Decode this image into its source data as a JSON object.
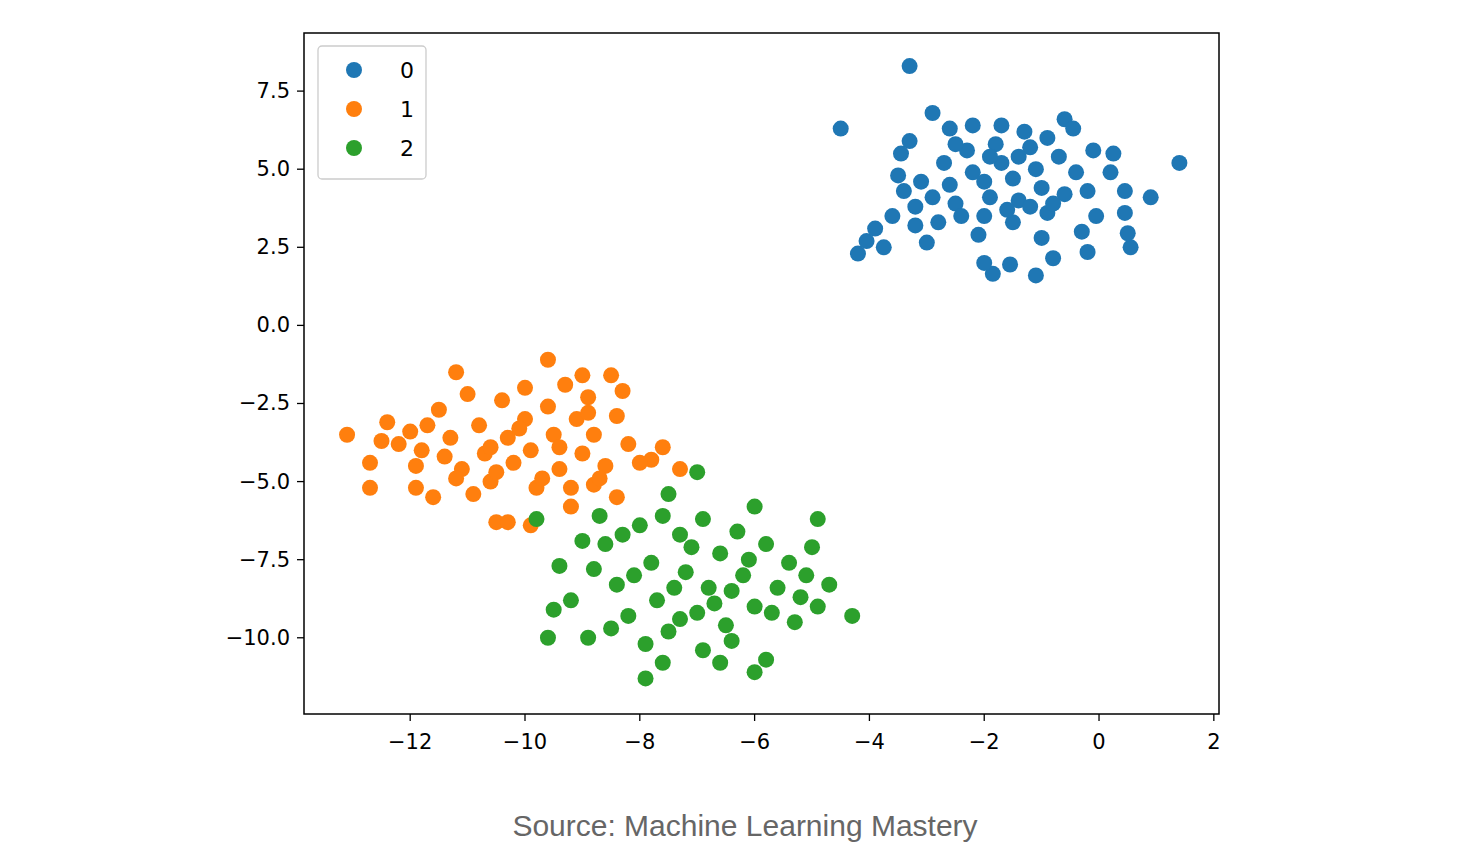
{
  "chart_data": {
    "type": "scatter",
    "source": "Source: Machine Learning Mastery",
    "legend": "upper left",
    "grid": false,
    "xlim": [
      -13.85,
      2.09
    ],
    "ylim": [
      -12.44,
      9.36
    ],
    "xticks": [
      {
        "value": -12,
        "label": "−12"
      },
      {
        "value": -10,
        "label": "−10"
      },
      {
        "value": -8,
        "label": "−8"
      },
      {
        "value": -6,
        "label": "−6"
      },
      {
        "value": -4,
        "label": "−4"
      },
      {
        "value": -2,
        "label": "−2"
      },
      0,
      2
    ],
    "yticks": [
      {
        "value": -10,
        "label": "−10.0"
      },
      {
        "value": -7.5,
        "label": "−7.5"
      },
      {
        "value": -5,
        "label": "−5.0"
      },
      {
        "value": -2.5,
        "label": "−2.5"
      },
      {
        "value": 0,
        "label": "0.0"
      },
      2.5,
      {
        "value": 5,
        "label": "5.0"
      },
      7.5
    ],
    "series": [
      {
        "name": "0",
        "color": "#1f77b4",
        "marker": "circle",
        "x": [
          -3.3,
          -4.5,
          1.4,
          0.9,
          -4.2,
          -2.9,
          -1.85,
          -1.1,
          0.55,
          -3.0,
          -3.75,
          -4.05,
          -0.6,
          -3.6,
          -3.5,
          0.45,
          0.25,
          -0.2,
          -1.55,
          0.5,
          -2.0,
          -0.8,
          -3.3,
          -3.45,
          -2.6,
          -2.2,
          -1.7,
          -1.3,
          -0.45,
          -0.1,
          0.45,
          0.2,
          -0.05,
          -0.3,
          -1.0,
          -2.1,
          -2.8,
          -3.2,
          -3.1,
          -2.7,
          -2.3,
          -1.8,
          -1.2,
          -0.7,
          -0.4,
          -0.6,
          -0.9,
          -1.5,
          -2.0,
          -2.5,
          -2.6,
          -2.2,
          -1.7,
          -1.1,
          -1.0,
          -1.4,
          -1.9,
          -2.0,
          -1.5,
          -1.2,
          -1.6,
          -2.4,
          -0.8,
          -0.2,
          -2.9,
          -3.4,
          -1.9,
          -1.4,
          -2.5,
          -0.9,
          -3.9,
          -3.2
        ],
        "values": [
          8.3,
          6.3,
          5.2,
          4.1,
          2.3,
          6.8,
          1.65,
          1.6,
          2.5,
          2.65,
          2.5,
          2.7,
          6.6,
          3.5,
          4.8,
          3.6,
          5.5,
          2.35,
          1.95,
          2.95,
          2.0,
          2.15,
          5.9,
          5.5,
          6.3,
          6.4,
          6.4,
          6.2,
          6.3,
          5.6,
          4.3,
          4.9,
          3.5,
          3.0,
          2.8,
          2.9,
          3.3,
          3.8,
          4.6,
          5.2,
          5.6,
          5.8,
          5.7,
          5.4,
          4.9,
          4.2,
          3.6,
          3.3,
          3.5,
          3.9,
          4.5,
          4.9,
          5.2,
          5.0,
          4.4,
          4.0,
          4.1,
          4.6,
          4.7,
          3.8,
          3.7,
          3.5,
          3.9,
          4.3,
          4.1,
          4.3,
          5.4,
          5.4,
          5.8,
          6.0,
          3.1,
          3.2
        ]
      },
      {
        "name": "1",
        "color": "#ff7f0e",
        "marker": "circle",
        "x": [
          -13.1,
          -12.7,
          -12.7,
          -12.4,
          -11.2,
          -9.6,
          -8.5,
          -7.3,
          -7.8,
          -7.6,
          -10.5,
          -10.3,
          -9.9,
          -11.9,
          -11.6,
          -8.4,
          -8.8,
          -9.2,
          -12.0,
          -11.8,
          -11.5,
          -11.3,
          -11.1,
          -11.0,
          -10.8,
          -10.7,
          -10.6,
          -10.4,
          -10.3,
          -10.2,
          -10.0,
          -10.0,
          -9.9,
          -9.8,
          -9.6,
          -9.5,
          -9.4,
          -9.3,
          -9.1,
          -9.0,
          -8.9,
          -8.8,
          -8.6,
          -8.4,
          -8.2,
          -8.0,
          -8.3,
          -10.9,
          -11.4,
          -12.2,
          -11.7,
          -10.5,
          -9.7,
          -9.2,
          -8.9,
          -10.1,
          -10.6,
          -9.4,
          -11.2,
          -11.9,
          -12.5,
          -8.7,
          -9.0
        ],
        "values": [
          -3.5,
          -5.2,
          -4.4,
          -3.1,
          -1.5,
          -1.1,
          -1.6,
          -4.6,
          -4.3,
          -3.9,
          -6.3,
          -6.3,
          -6.4,
          -5.2,
          -5.5,
          -5.5,
          -5.1,
          -5.8,
          -3.4,
          -4.0,
          -2.7,
          -3.6,
          -4.6,
          -2.2,
          -3.2,
          -4.1,
          -5.0,
          -2.4,
          -3.6,
          -4.4,
          -2.0,
          -3.0,
          -4.0,
          -5.2,
          -2.6,
          -3.5,
          -4.6,
          -1.9,
          -3.0,
          -4.1,
          -2.3,
          -3.5,
          -4.5,
          -2.9,
          -3.8,
          -4.4,
          -2.1,
          -5.4,
          -4.2,
          -3.8,
          -3.2,
          -4.7,
          -4.9,
          -5.2,
          -2.8,
          -3.3,
          -3.9,
          -3.9,
          -4.9,
          -4.5,
          -3.7,
          -4.9,
          -1.6
        ]
      },
      {
        "name": "2",
        "color": "#2ca02c",
        "marker": "circle",
        "x": [
          -7.0,
          -7.5,
          -9.8,
          -9.4,
          -9.5,
          -9.6,
          -7.9,
          -6.0,
          -5.8,
          -4.3,
          -4.7,
          -4.9,
          -8.9,
          -7.6,
          -6.6,
          -9.2,
          -9.0,
          -8.7,
          -6.0,
          -8.6,
          -8.4,
          -8.2,
          -8.0,
          -7.8,
          -7.7,
          -7.5,
          -7.3,
          -7.2,
          -7.0,
          -6.9,
          -6.8,
          -6.6,
          -6.5,
          -6.3,
          -6.2,
          -6.0,
          -5.8,
          -5.6,
          -5.4,
          -5.3,
          -5.1,
          -5.0,
          -6.4,
          -7.9,
          -8.5,
          -8.8,
          -7.4,
          -6.7,
          -7.1,
          -6.1,
          -5.7,
          -8.1,
          -7.6,
          -6.4,
          -5.2,
          -4.9,
          -7.3,
          -8.3,
          -6.9
        ],
        "values": [
          -4.7,
          -5.4,
          -6.2,
          -7.7,
          -9.1,
          -10.0,
          -11.3,
          -11.1,
          -10.7,
          -9.3,
          -8.3,
          -6.2,
          -10.0,
          -10.8,
          -10.8,
          -8.8,
          -6.9,
          -6.1,
          -5.8,
          -7.0,
          -8.3,
          -9.3,
          -6.4,
          -7.6,
          -8.8,
          -9.8,
          -6.7,
          -7.9,
          -9.2,
          -6.2,
          -8.4,
          -7.3,
          -9.6,
          -6.6,
          -8.0,
          -9.0,
          -7.0,
          -8.4,
          -7.6,
          -9.5,
          -8.0,
          -7.1,
          -10.1,
          -10.2,
          -9.7,
          -7.8,
          -8.4,
          -8.9,
          -7.1,
          -7.5,
          -9.2,
          -8.0,
          -6.1,
          -8.5,
          -8.7,
          -9.0,
          -9.4,
          -6.7,
          -10.4
        ]
      }
    ]
  }
}
